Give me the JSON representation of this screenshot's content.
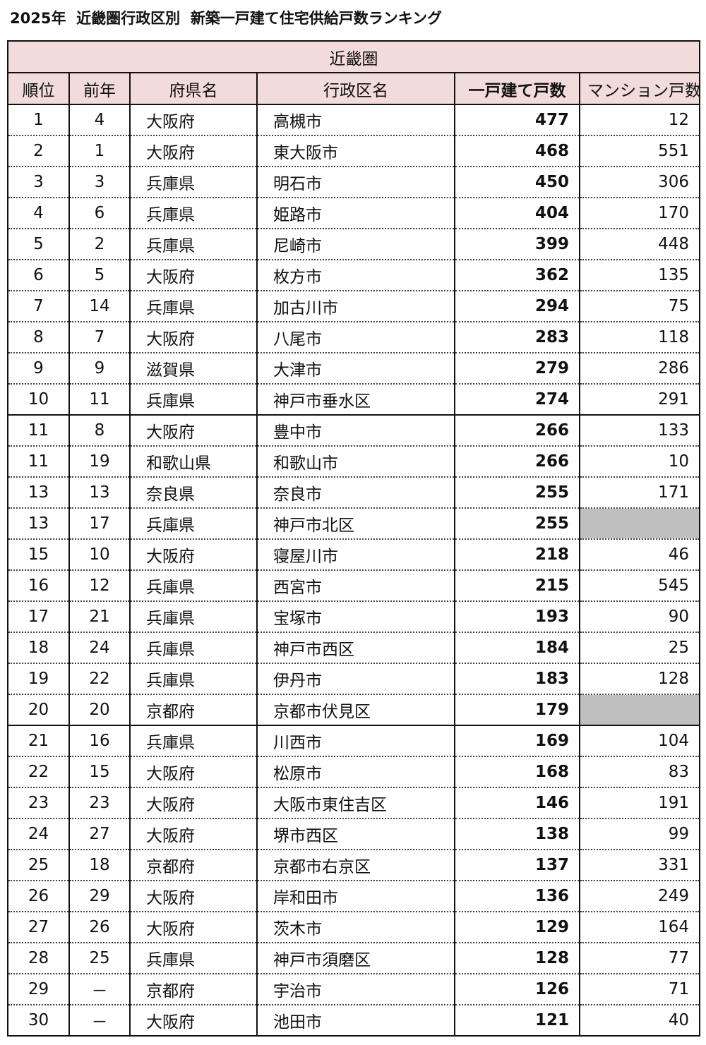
{
  "title": "2025年  近畿圏行政区別  新築一戸建て住宅供給戸数ランキング",
  "region": "近畿圏",
  "columns": [
    "順位",
    "前年",
    "府県名",
    "行政区名",
    "一戸建て戸数",
    "マンション戸数"
  ],
  "colors": {
    "header_bg": "#f2dcdb",
    "empty_cell": "#bfbfbf"
  },
  "rows": [
    [
      "1",
      "4",
      "大阪府",
      "高槻市",
      "477",
      "12"
    ],
    [
      "2",
      "1",
      "大阪府",
      "東大阪市",
      "468",
      "551"
    ],
    [
      "3",
      "3",
      "兵庫県",
      "明石市",
      "450",
      "306"
    ],
    [
      "4",
      "6",
      "兵庫県",
      "姫路市",
      "404",
      "170"
    ],
    [
      "5",
      "2",
      "兵庫県",
      "尼崎市",
      "399",
      "448"
    ],
    [
      "6",
      "5",
      "大阪府",
      "枚方市",
      "362",
      "135"
    ],
    [
      "7",
      "14",
      "兵庫県",
      "加古川市",
      "294",
      "75"
    ],
    [
      "8",
      "7",
      "大阪府",
      "八尾市",
      "283",
      "118"
    ],
    [
      "9",
      "9",
      "滋賀県",
      "大津市",
      "279",
      "286"
    ],
    [
      "10",
      "11",
      "兵庫県",
      "神戸市垂水区",
      "274",
      "291"
    ],
    [
      "11",
      "8",
      "大阪府",
      "豊中市",
      "266",
      "133"
    ],
    [
      "11",
      "19",
      "和歌山県",
      "和歌山市",
      "266",
      "10"
    ],
    [
      "13",
      "13",
      "奈良県",
      "奈良市",
      "255",
      "171"
    ],
    [
      "13",
      "17",
      "兵庫県",
      "神戸市北区",
      "255",
      null
    ],
    [
      "15",
      "10",
      "大阪府",
      "寝屋川市",
      "218",
      "46"
    ],
    [
      "16",
      "12",
      "兵庫県",
      "西宮市",
      "215",
      "545"
    ],
    [
      "17",
      "21",
      "兵庫県",
      "宝塚市",
      "193",
      "90"
    ],
    [
      "18",
      "24",
      "兵庫県",
      "神戸市西区",
      "184",
      "25"
    ],
    [
      "19",
      "22",
      "兵庫県",
      "伊丹市",
      "183",
      "128"
    ],
    [
      "20",
      "20",
      "京都府",
      "京都市伏見区",
      "179",
      null
    ],
    [
      "21",
      "16",
      "兵庫県",
      "川西市",
      "169",
      "104"
    ],
    [
      "22",
      "15",
      "大阪府",
      "松原市",
      "168",
      "83"
    ],
    [
      "23",
      "23",
      "大阪府",
      "大阪市東住吉区",
      "146",
      "191"
    ],
    [
      "24",
      "27",
      "大阪府",
      "堺市西区",
      "138",
      "99"
    ],
    [
      "25",
      "18",
      "京都府",
      "京都市右京区",
      "137",
      "331"
    ],
    [
      "26",
      "29",
      "大阪府",
      "岸和田市",
      "136",
      "249"
    ],
    [
      "27",
      "26",
      "大阪府",
      "茨木市",
      "129",
      "164"
    ],
    [
      "28",
      "25",
      "兵庫県",
      "神戸市須磨区",
      "128",
      "77"
    ],
    [
      "29",
      "－",
      "京都府",
      "宇治市",
      "126",
      "71"
    ],
    [
      "30",
      "－",
      "大阪府",
      "池田市",
      "121",
      "40"
    ]
  ]
}
